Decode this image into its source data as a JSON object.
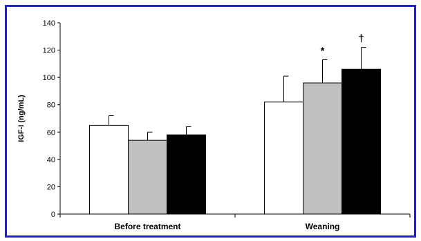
{
  "colors": {
    "frame_border": "#1f1fd6",
    "axis": "#000000",
    "bar_outline": "#000000"
  },
  "chart_data": {
    "type": "bar",
    "title": "",
    "xlabel": "",
    "ylabel": "IGF-I (ng/mL)",
    "ylim": [
      0,
      140
    ],
    "yticks": [
      0,
      20,
      40,
      60,
      80,
      100,
      120,
      140
    ],
    "categories": [
      "Before  treatment",
      "Weaning"
    ],
    "series": [
      {
        "fill": "#ffffff",
        "values": [
          65,
          82
        ],
        "errors": [
          7,
          19
        ]
      },
      {
        "fill": "#c0c0c0",
        "values": [
          54,
          96
        ],
        "errors": [
          6,
          17
        ]
      },
      {
        "fill": "#000000",
        "values": [
          58,
          106
        ],
        "errors": [
          6,
          16
        ]
      }
    ],
    "annotations": [
      {
        "category": 1,
        "series": 1,
        "text": "*"
      },
      {
        "category": 1,
        "series": 2,
        "text": "†"
      }
    ],
    "grid": false,
    "legend": "none"
  }
}
